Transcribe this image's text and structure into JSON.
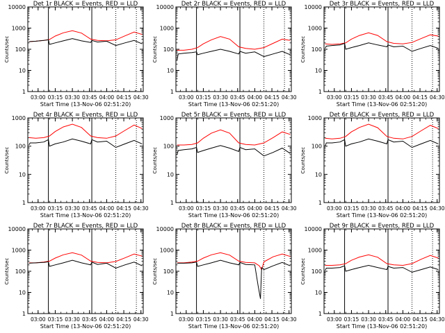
{
  "figure": {
    "xlabel": "Start Time (13-Nov-06 02:51:20)",
    "ylabel": "Counts/sec",
    "x_ticks": [
      "03:00",
      "03:15",
      "03:30",
      "03:45",
      "04:00",
      "04:15",
      "04:30"
    ],
    "y_ticks": [
      "1",
      "10",
      "100",
      "1000",
      "10000"
    ],
    "colors": {
      "events": "#000000",
      "lld": "#ff0000",
      "axes": "#000000"
    }
  },
  "chart_data": [
    {
      "type": "line",
      "title": "Det 1r BLACK = Events, RED = LLD",
      "xlabel": "Start Time (13-Nov-06 02:51:20)",
      "ylabel": "Counts/sec",
      "y_scale": "log",
      "ylim": [
        1,
        10000
      ],
      "xlim": [
        "02:51",
        "04:32"
      ],
      "vlines": [
        {
          "x": "03:09",
          "style": "solid"
        },
        {
          "x": "03:47",
          "style": "solid"
        },
        {
          "x": "04:08",
          "style": "dotted"
        },
        {
          "x": "04:26",
          "style": "dotted"
        }
      ],
      "series": [
        {
          "name": "LLD",
          "color": "#ff0000",
          "x": [
            "02:52",
            "02:58",
            "03:05",
            "03:10",
            "03:15",
            "03:22",
            "03:30",
            "03:38",
            "03:46",
            "03:52",
            "04:00",
            "04:08",
            "04:16",
            "04:24",
            "04:31"
          ],
          "y": [
            230,
            240,
            260,
            290,
            420,
            600,
            750,
            580,
            300,
            260,
            250,
            280,
            430,
            650,
            500
          ]
        },
        {
          "name": "Events",
          "color": "#000000",
          "x": [
            "02:52",
            "02:58",
            "03:05",
            "03:09",
            "03:10",
            "03:15",
            "03:22",
            "03:30",
            "03:38",
            "03:46",
            "03:47",
            "03:52",
            "04:00",
            "04:08",
            "04:16",
            "04:24",
            "04:31"
          ],
          "y": [
            230,
            240,
            260,
            280,
            170,
            200,
            250,
            320,
            250,
            210,
            260,
            220,
            240,
            150,
            200,
            260,
            180
          ]
        }
      ]
    },
    {
      "type": "line",
      "title": "Det 2r BLACK = Events, RED = LLD",
      "xlabel": "Start Time (13-Nov-06 02:51:20)",
      "ylabel": "Counts/sec",
      "y_scale": "log",
      "ylim": [
        1,
        10000
      ],
      "xlim": [
        "02:51",
        "04:32"
      ],
      "vlines": [
        {
          "x": "03:09",
          "style": "solid"
        },
        {
          "x": "03:47",
          "style": "solid"
        },
        {
          "x": "04:08",
          "style": "dotted"
        },
        {
          "x": "04:26",
          "style": "dotted"
        }
      ],
      "series": [
        {
          "name": "LLD",
          "color": "#ff0000",
          "x": [
            "02:52",
            "02:58",
            "03:05",
            "03:10",
            "03:15",
            "03:22",
            "03:30",
            "03:38",
            "03:46",
            "03:52",
            "04:00",
            "04:08",
            "04:16",
            "04:24",
            "04:31"
          ],
          "y": [
            90,
            90,
            100,
            120,
            180,
            280,
            400,
            300,
            130,
            110,
            100,
            120,
            190,
            300,
            260
          ]
        },
        {
          "name": "Events",
          "color": "#000000",
          "x": [
            "02:52",
            "02:53",
            "02:58",
            "03:05",
            "03:09",
            "03:10",
            "03:15",
            "03:22",
            "03:30",
            "03:38",
            "03:46",
            "03:47",
            "03:52",
            "04:00",
            "04:08",
            "04:16",
            "04:24",
            "04:31"
          ],
          "y": [
            30,
            60,
            65,
            70,
            75,
            55,
            65,
            80,
            100,
            80,
            60,
            80,
            65,
            75,
            45,
            60,
            80,
            55
          ]
        }
      ]
    },
    {
      "type": "line",
      "title": "Det 3r BLACK = Events, RED = LLD",
      "xlabel": "Start Time (13-Nov-06 02:51:20)",
      "ylabel": "Counts/sec",
      "y_scale": "log",
      "ylim": [
        1,
        10000
      ],
      "xlim": [
        "02:51",
        "04:32"
      ],
      "vlines": [
        {
          "x": "03:09",
          "style": "solid"
        },
        {
          "x": "03:47",
          "style": "solid"
        },
        {
          "x": "04:08",
          "style": "dotted"
        },
        {
          "x": "04:26",
          "style": "dotted"
        }
      ],
      "series": [
        {
          "name": "LLD",
          "color": "#ff0000",
          "x": [
            "02:52",
            "02:58",
            "03:05",
            "03:10",
            "03:15",
            "03:22",
            "03:30",
            "03:38",
            "03:46",
            "03:52",
            "04:00",
            "04:08",
            "04:16",
            "04:24",
            "04:31"
          ],
          "y": [
            180,
            170,
            180,
            200,
            300,
            450,
            600,
            450,
            230,
            190,
            180,
            210,
            320,
            480,
            420
          ]
        },
        {
          "name": "Events",
          "color": "#000000",
          "x": [
            "02:52",
            "02:53",
            "02:58",
            "03:05",
            "03:09",
            "03:10",
            "03:15",
            "03:22",
            "03:30",
            "03:38",
            "03:46",
            "03:47",
            "03:52",
            "04:00",
            "04:08",
            "04:16",
            "04:24",
            "04:31"
          ],
          "y": [
            110,
            140,
            150,
            160,
            190,
            100,
            120,
            150,
            200,
            160,
            130,
            160,
            130,
            140,
            80,
            110,
            150,
            110
          ]
        }
      ]
    },
    {
      "type": "line",
      "title": "Det 4r BLACK = Events, RED = LLD",
      "xlabel": "Start Time (13-Nov-06 02:51:20)",
      "ylabel": "Counts/sec",
      "y_scale": "log",
      "ylim": [
        1,
        1000
      ],
      "xlim": [
        "02:51",
        "04:32"
      ],
      "vlines": [
        {
          "x": "03:09",
          "style": "solid"
        },
        {
          "x": "03:47",
          "style": "solid"
        },
        {
          "x": "04:08",
          "style": "dotted"
        },
        {
          "x": "04:26",
          "style": "dotted"
        }
      ],
      "series": [
        {
          "name": "LLD",
          "color": "#ff0000",
          "x": [
            "02:52",
            "02:58",
            "03:05",
            "03:10",
            "03:15",
            "03:22",
            "03:30",
            "03:38",
            "03:46",
            "03:52",
            "04:00",
            "04:08",
            "04:16",
            "04:24",
            "04:31"
          ],
          "y": [
            200,
            190,
            200,
            230,
            330,
            480,
            600,
            460,
            230,
            200,
            190,
            230,
            360,
            560,
            420
          ]
        },
        {
          "name": "Events",
          "color": "#000000",
          "x": [
            "02:52",
            "02:53",
            "02:58",
            "03:05",
            "03:09",
            "03:10",
            "03:15",
            "03:22",
            "03:30",
            "03:38",
            "03:46",
            "03:47",
            "03:52",
            "04:00",
            "04:08",
            "04:16",
            "04:24",
            "04:31"
          ],
          "y": [
            110,
            130,
            130,
            140,
            170,
            100,
            120,
            140,
            180,
            150,
            120,
            170,
            140,
            150,
            90,
            120,
            160,
            120
          ]
        }
      ]
    },
    {
      "type": "line",
      "title": "Det 5r BLACK = Events, RED = LLD",
      "xlabel": "Start Time (13-Nov-06 02:51:20)",
      "ylabel": "Counts/sec",
      "y_scale": "log",
      "ylim": [
        1,
        1000
      ],
      "xlim": [
        "02:51",
        "04:32"
      ],
      "vlines": [
        {
          "x": "03:09",
          "style": "solid"
        },
        {
          "x": "03:47",
          "style": "solid"
        },
        {
          "x": "04:08",
          "style": "dotted"
        },
        {
          "x": "04:26",
          "style": "dotted"
        }
      ],
      "series": [
        {
          "name": "LLD",
          "color": "#ff0000",
          "x": [
            "02:52",
            "02:58",
            "03:05",
            "03:10",
            "03:15",
            "03:22",
            "03:30",
            "03:38",
            "03:46",
            "03:52",
            "04:00",
            "04:08",
            "04:16",
            "04:24",
            "04:31"
          ],
          "y": [
            110,
            110,
            115,
            130,
            190,
            290,
            380,
            290,
            130,
            115,
            110,
            130,
            200,
            320,
            260
          ]
        },
        {
          "name": "Events",
          "color": "#000000",
          "x": [
            "02:52",
            "02:53",
            "02:58",
            "03:05",
            "03:09",
            "03:10",
            "03:15",
            "03:22",
            "03:30",
            "03:38",
            "03:46",
            "03:47",
            "03:52",
            "04:00",
            "04:08",
            "04:16",
            "04:24",
            "04:31"
          ],
          "y": [
            50,
            70,
            75,
            80,
            90,
            60,
            70,
            85,
            105,
            85,
            65,
            90,
            75,
            80,
            45,
            60,
            85,
            55
          ]
        }
      ]
    },
    {
      "type": "line",
      "title": "Det 6r BLACK = Events, RED = LLD",
      "xlabel": "Start Time (13-Nov-06 02:51:20)",
      "ylabel": "Counts/sec",
      "y_scale": "log",
      "ylim": [
        1,
        1000
      ],
      "xlim": [
        "02:51",
        "04:32"
      ],
      "vlines": [
        {
          "x": "03:09",
          "style": "solid"
        },
        {
          "x": "03:47",
          "style": "solid"
        },
        {
          "x": "04:08",
          "style": "dotted"
        },
        {
          "x": "04:26",
          "style": "dotted"
        }
      ],
      "series": [
        {
          "name": "LLD",
          "color": "#ff0000",
          "x": [
            "02:52",
            "02:58",
            "03:05",
            "03:10",
            "03:15",
            "03:22",
            "03:30",
            "03:38",
            "03:46",
            "03:52",
            "04:00",
            "04:08",
            "04:16",
            "04:24",
            "04:31"
          ],
          "y": [
            190,
            180,
            190,
            220,
            320,
            460,
            600,
            450,
            220,
            190,
            180,
            220,
            350,
            550,
            420
          ]
        },
        {
          "name": "Events",
          "color": "#000000",
          "x": [
            "02:52",
            "02:53",
            "02:58",
            "03:05",
            "03:09",
            "03:10",
            "03:15",
            "03:22",
            "03:30",
            "03:38",
            "03:46",
            "03:47",
            "03:52",
            "04:00",
            "04:08",
            "04:16",
            "04:24",
            "04:31"
          ],
          "y": [
            100,
            130,
            130,
            140,
            170,
            100,
            120,
            140,
            180,
            150,
            120,
            170,
            140,
            150,
            90,
            120,
            160,
            120
          ]
        }
      ]
    },
    {
      "type": "line",
      "title": "Det 7r BLACK = Events, RED = LLD",
      "xlabel": "Start Time (13-Nov-06 02:51:20)",
      "ylabel": "Counts/sec",
      "y_scale": "log",
      "ylim": [
        1,
        10000
      ],
      "xlim": [
        "02:51",
        "04:32"
      ],
      "vlines": [
        {
          "x": "03:09",
          "style": "solid"
        },
        {
          "x": "03:47",
          "style": "solid"
        },
        {
          "x": "04:08",
          "style": "dotted"
        },
        {
          "x": "04:26",
          "style": "dotted"
        }
      ],
      "series": [
        {
          "name": "LLD",
          "color": "#ff0000",
          "x": [
            "02:52",
            "02:58",
            "03:05",
            "03:10",
            "03:15",
            "03:22",
            "03:30",
            "03:38",
            "03:46",
            "03:52",
            "04:00",
            "04:08",
            "04:16",
            "04:24",
            "04:31"
          ],
          "y": [
            250,
            250,
            270,
            300,
            420,
            600,
            750,
            580,
            300,
            260,
            250,
            290,
            430,
            650,
            520
          ]
        },
        {
          "name": "Events",
          "color": "#000000",
          "x": [
            "02:52",
            "02:58",
            "03:05",
            "03:09",
            "03:10",
            "03:15",
            "03:22",
            "03:30",
            "03:38",
            "03:46",
            "03:47",
            "03:52",
            "04:00",
            "04:08",
            "04:16",
            "04:24",
            "04:31"
          ],
          "y": [
            240,
            250,
            260,
            280,
            170,
            200,
            250,
            330,
            250,
            200,
            270,
            210,
            240,
            140,
            200,
            270,
            180
          ]
        }
      ]
    },
    {
      "type": "line",
      "title": "Det 8r BLACK = Events, RED = LLD",
      "xlabel": "Start Time (13-Nov-06 02:51:20)",
      "ylabel": "Counts/sec",
      "y_scale": "log",
      "ylim": [
        1,
        10000
      ],
      "xlim": [
        "02:51",
        "04:32"
      ],
      "vlines": [
        {
          "x": "03:09",
          "style": "solid"
        },
        {
          "x": "03:47",
          "style": "solid"
        },
        {
          "x": "04:08",
          "style": "dotted"
        },
        {
          "x": "04:26",
          "style": "dotted"
        }
      ],
      "series": [
        {
          "name": "LLD",
          "color": "#ff0000",
          "x": [
            "02:52",
            "02:58",
            "03:05",
            "03:10",
            "03:15",
            "03:22",
            "03:30",
            "03:38",
            "03:46",
            "03:52",
            "04:00",
            "04:04",
            "04:06",
            "04:08",
            "04:16",
            "04:24",
            "04:31"
          ],
          "y": [
            250,
            250,
            270,
            300,
            420,
            600,
            750,
            580,
            300,
            260,
            250,
            180,
            120,
            280,
            480,
            650,
            500
          ]
        },
        {
          "name": "Events",
          "color": "#000000",
          "x": [
            "02:52",
            "02:58",
            "03:05",
            "03:09",
            "03:10",
            "03:15",
            "03:22",
            "03:30",
            "03:38",
            "03:46",
            "03:47",
            "03:52",
            "04:00",
            "04:03",
            "04:05",
            "04:06",
            "04:08",
            "04:16",
            "04:24",
            "04:31"
          ],
          "y": [
            240,
            240,
            250,
            270,
            170,
            200,
            250,
            330,
            250,
            200,
            260,
            210,
            200,
            20,
            5,
            150,
            120,
            180,
            260,
            180
          ]
        }
      ]
    },
    {
      "type": "line",
      "title": "Det 9r BLACK = Events, RED = LLD",
      "xlabel": "Start Time (13-Nov-06 02:51:20)",
      "ylabel": "Counts/sec",
      "y_scale": "log",
      "ylim": [
        1,
        10000
      ],
      "xlim": [
        "02:51",
        "04:32"
      ],
      "vlines": [
        {
          "x": "03:09",
          "style": "solid"
        },
        {
          "x": "03:47",
          "style": "solid"
        },
        {
          "x": "04:08",
          "style": "dotted"
        },
        {
          "x": "04:26",
          "style": "dotted"
        }
      ],
      "series": [
        {
          "name": "LLD",
          "color": "#ff0000",
          "x": [
            "02:52",
            "02:58",
            "03:05",
            "03:10",
            "03:15",
            "03:22",
            "03:30",
            "03:38",
            "03:46",
            "03:52",
            "04:00",
            "04:08",
            "04:16",
            "04:24",
            "04:31"
          ],
          "y": [
            190,
            190,
            200,
            230,
            330,
            470,
            600,
            460,
            230,
            200,
            190,
            230,
            370,
            560,
            420
          ]
        },
        {
          "name": "Events",
          "color": "#000000",
          "x": [
            "02:52",
            "02:53",
            "02:58",
            "03:05",
            "03:09",
            "03:10",
            "03:15",
            "03:22",
            "03:30",
            "03:38",
            "03:46",
            "03:47",
            "03:52",
            "04:00",
            "04:08",
            "04:16",
            "04:24",
            "04:31"
          ],
          "y": [
            110,
            140,
            140,
            150,
            180,
            100,
            120,
            150,
            190,
            150,
            120,
            170,
            140,
            150,
            90,
            120,
            160,
            120
          ]
        }
      ]
    }
  ]
}
